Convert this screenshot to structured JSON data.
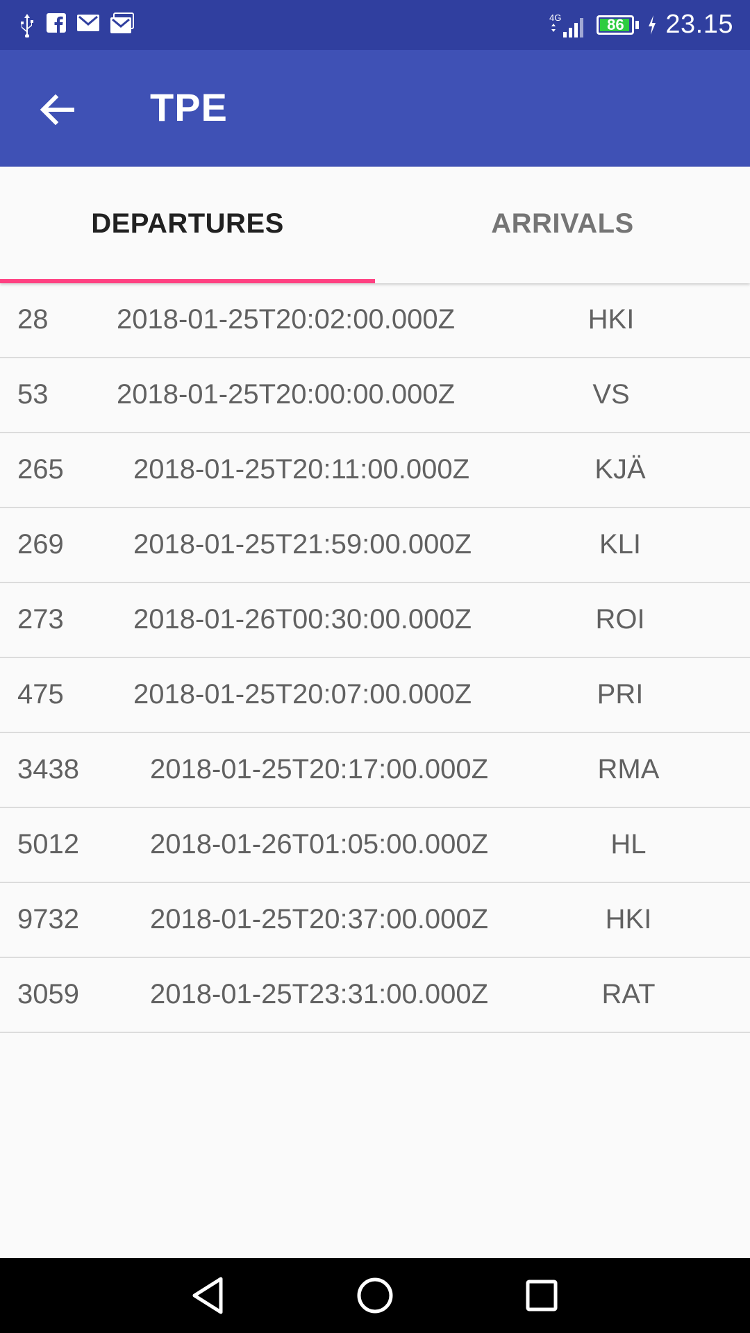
{
  "status_bar": {
    "time": "23.15",
    "battery_level": "86",
    "network": "4G",
    "left_icons": [
      "usb-icon",
      "facebook-icon",
      "gmail-icon",
      "gmail-icon"
    ]
  },
  "app_bar": {
    "title": "TPE",
    "back_icon": "arrow-left-icon"
  },
  "tabs": {
    "departures": "DEPARTURES",
    "arrivals": "ARRIVALS",
    "selected": "departures"
  },
  "trains": [
    {
      "number": "28",
      "time": "2018-01-25T20:02:00.000Z",
      "station": "HKI"
    },
    {
      "number": "53",
      "time": "2018-01-25T20:00:00.000Z",
      "station": "VS"
    },
    {
      "number": "265",
      "time": "2018-01-25T20:11:00.000Z",
      "station": "KJÄ"
    },
    {
      "number": "269",
      "time": "2018-01-25T21:59:00.000Z",
      "station": "KLI"
    },
    {
      "number": "273",
      "time": "2018-01-26T00:30:00.000Z",
      "station": "ROI"
    },
    {
      "number": "475",
      "time": "2018-01-25T20:07:00.000Z",
      "station": "PRI"
    },
    {
      "number": "3438",
      "time": "2018-01-25T20:17:00.000Z",
      "station": "RMA"
    },
    {
      "number": "5012",
      "time": "2018-01-26T01:05:00.000Z",
      "station": "HL"
    },
    {
      "number": "9732",
      "time": "2018-01-25T20:37:00.000Z",
      "station": "HKI"
    },
    {
      "number": "3059",
      "time": "2018-01-25T23:31:00.000Z",
      "station": "RAT"
    }
  ],
  "colors": {
    "status_bar": "#303f9f",
    "app_bar": "#3f51b5",
    "accent": "#ff4081",
    "background": "#fafafa"
  }
}
